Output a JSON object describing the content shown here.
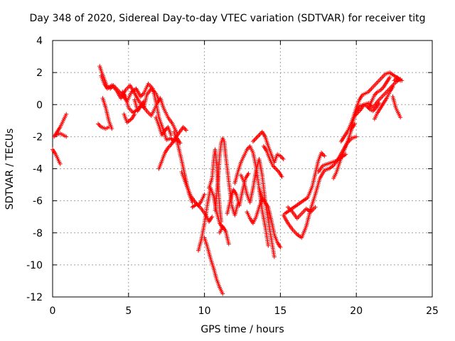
{
  "chart_data": {
    "type": "scatter",
    "title": "Day 348 of 2020, Sidereal Day-to-day VTEC variation (SDTVAR) for receiver titg",
    "xlabel": "GPS time / hours",
    "ylabel": "SDTVAR / TECUs",
    "xlim": [
      0,
      25
    ],
    "ylim": [
      -12,
      4
    ],
    "xticks": [
      0,
      5,
      10,
      15,
      20,
      25
    ],
    "yticks": [
      -12,
      -10,
      -8,
      -6,
      -4,
      -2,
      0,
      2,
      4
    ],
    "grid": true,
    "marker": "plus",
    "color": "#ff0000",
    "series": [
      {
        "x": [
          0.0,
          0.2,
          0.4,
          0.5
        ],
        "y": [
          -2.8,
          -3.1,
          -3.5,
          -3.7
        ]
      },
      {
        "x": [
          0.1,
          0.3,
          0.5,
          0.7,
          0.9
        ],
        "y": [
          -2.0,
          -1.7,
          -1.4,
          -1.0,
          -0.6
        ]
      },
      {
        "x": [
          0.2,
          0.5,
          0.9
        ],
        "y": [
          -1.9,
          -1.8,
          -2.0
        ]
      },
      {
        "x": [
          3.0,
          3.2,
          3.5,
          3.7
        ],
        "y": [
          -1.2,
          -1.4,
          -1.5,
          -1.4
        ]
      },
      {
        "x": [
          3.1,
          3.2,
          3.4,
          3.6,
          3.8,
          4.0,
          4.3,
          4.6,
          4.9,
          5.2,
          5.5,
          5.8,
          6.0,
          6.3,
          6.6,
          6.8,
          7.0,
          7.3,
          7.5,
          7.8,
          8.0,
          8.2,
          8.4
        ],
        "y": [
          2.4,
          2.1,
          1.6,
          1.1,
          1.0,
          1.2,
          0.9,
          0.6,
          0.2,
          0.8,
          1.0,
          0.5,
          0.7,
          1.3,
          1.0,
          0.2,
          -0.8,
          -1.6,
          -2.2,
          -2.1,
          -2.3,
          -2.1,
          -2.4
        ]
      },
      {
        "x": [
          3.2,
          3.4,
          3.6,
          3.9,
          4.2,
          4.5,
          4.8,
          5.1,
          5.4,
          5.7,
          6.0,
          6.2,
          6.5,
          6.8,
          7.0
        ],
        "y": [
          1.8,
          1.3,
          1.0,
          1.2,
          0.9,
          0.4,
          0.9,
          1.2,
          0.7,
          0.2,
          -0.2,
          0.6,
          1.0,
          0.7,
          0.3
        ]
      },
      {
        "x": [
          3.3,
          3.5,
          3.7,
          3.9
        ],
        "y": [
          0.4,
          -0.2,
          -1.0,
          -1.5
        ]
      },
      {
        "x": [
          4.6,
          4.8,
          5.0,
          5.3,
          5.6,
          5.9,
          6.2,
          6.5,
          6.7,
          6.9,
          7.1,
          7.3,
          7.6,
          7.9,
          8.2
        ],
        "y": [
          0.8,
          0.5,
          -0.2,
          -0.5,
          -0.3,
          0.0,
          -0.4,
          -0.7,
          -0.3,
          0.1,
          0.4,
          -0.2,
          -0.8,
          -1.2,
          -1.8
        ]
      },
      {
        "x": [
          4.7,
          4.9,
          5.2,
          5.4
        ],
        "y": [
          -0.6,
          -1.1,
          -0.9,
          -0.6
        ]
      },
      {
        "x": [
          5.4,
          5.6,
          5.8,
          6.0
        ],
        "y": [
          0.3,
          -0.4,
          -0.1,
          0.2
        ]
      },
      {
        "x": [
          6.8,
          7.0,
          7.2,
          7.4,
          7.6,
          7.8
        ],
        "y": [
          -0.8,
          -1.3,
          -1.9,
          -1.6,
          -1.4,
          -1.9
        ]
      },
      {
        "x": [
          7.0,
          7.2,
          7.4,
          7.6,
          7.8,
          8.0,
          8.3,
          8.6,
          8.8
        ],
        "y": [
          -4.0,
          -3.5,
          -3.0,
          -2.7,
          -2.5,
          -2.2,
          -1.8,
          -1.4,
          -1.6
        ]
      },
      {
        "x": [
          8.0,
          8.2,
          8.5,
          8.8,
          9.0,
          9.2
        ],
        "y": [
          -1.7,
          -2.3,
          -3.5,
          -4.8,
          -5.6,
          -6.1
        ]
      },
      {
        "x": [
          8.5,
          8.8,
          9.1,
          9.4,
          9.6,
          9.8,
          10.0
        ],
        "y": [
          -4.2,
          -5.0,
          -5.7,
          -6.1,
          -6.3,
          -6.0,
          -5.6
        ]
      },
      {
        "x": [
          9.2,
          9.5,
          9.8,
          10.1,
          10.3,
          10.5
        ],
        "y": [
          -6.4,
          -6.2,
          -6.5,
          -6.9,
          -7.3,
          -7.0
        ]
      },
      {
        "x": [
          9.6,
          9.8,
          10.0,
          10.2,
          10.4,
          10.6,
          10.8,
          11.0,
          11.2
        ],
        "y": [
          -9.1,
          -8.4,
          -7.4,
          -6.2,
          -5.2,
          -5.7,
          -6.7,
          -7.4,
          -7.7
        ]
      },
      {
        "x": [
          10.0,
          10.2,
          10.4,
          10.6,
          10.8,
          11.0,
          11.1,
          11.2
        ],
        "y": [
          -8.3,
          -8.9,
          -9.6,
          -10.2,
          -10.9,
          -11.4,
          -11.6,
          -11.8
        ]
      },
      {
        "x": [
          10.3,
          10.5,
          10.6,
          10.7,
          10.8,
          10.9,
          11.0,
          11.1
        ],
        "y": [
          -5.2,
          -4.6,
          -3.5,
          -2.8,
          -3.7,
          -5.1,
          -6.4,
          -7.3
        ]
      },
      {
        "x": [
          10.7,
          10.9,
          11.0,
          11.1,
          11.2,
          11.3,
          11.4,
          11.6,
          11.8,
          12.0,
          12.2
        ],
        "y": [
          -6.6,
          -4.7,
          -3.2,
          -2.4,
          -2.1,
          -2.3,
          -3.2,
          -4.8,
          -6.3,
          -6.9,
          -6.2
        ]
      },
      {
        "x": [
          11.0,
          11.2,
          11.4,
          11.5,
          11.6
        ],
        "y": [
          -8.0,
          -7.6,
          -7.9,
          -8.3,
          -8.7
        ]
      },
      {
        "x": [
          11.5,
          11.7,
          11.9,
          12.1,
          12.3,
          12.5,
          12.7,
          12.9
        ],
        "y": [
          -6.8,
          -6.0,
          -5.3,
          -5.6,
          -6.3,
          -5.4,
          -4.6,
          -4.3
        ]
      },
      {
        "x": [
          12.0,
          12.2,
          12.4,
          12.6,
          12.8,
          13.0,
          13.2,
          13.4,
          13.6,
          13.8,
          14.0,
          14.2
        ],
        "y": [
          -4.9,
          -4.2,
          -3.6,
          -3.2,
          -2.8,
          -2.6,
          -3.0,
          -3.9,
          -5.2,
          -6.6,
          -7.6,
          -8.8
        ]
      },
      {
        "x": [
          12.4,
          12.6,
          12.8,
          13.0,
          13.2,
          13.4,
          13.6,
          13.8,
          14.0,
          14.3,
          14.6
        ],
        "y": [
          -4.4,
          -4.8,
          -5.6,
          -6.1,
          -5.2,
          -4.1,
          -3.4,
          -4.4,
          -6.0,
          -7.8,
          -9.5
        ]
      },
      {
        "x": [
          12.8,
          13.0,
          13.2,
          13.4,
          13.6,
          13.8
        ],
        "y": [
          -6.7,
          -7.1,
          -7.4,
          -7.0,
          -6.4,
          -5.9
        ]
      },
      {
        "x": [
          13.2,
          13.4,
          13.6,
          13.8,
          14.0,
          14.2,
          14.4,
          14.6,
          14.8,
          15.0,
          15.2
        ],
        "y": [
          -2.3,
          -2.1,
          -1.9,
          -1.7,
          -2.0,
          -2.6,
          -3.1,
          -3.6,
          -3.1,
          -3.2,
          -3.4
        ]
      },
      {
        "x": [
          13.9,
          14.1,
          14.3,
          14.5,
          14.7,
          14.9,
          15.1
        ],
        "y": [
          -2.6,
          -2.9,
          -3.4,
          -3.8,
          -4.0,
          -4.2,
          -4.5
        ]
      },
      {
        "x": [
          13.6,
          13.8,
          14.0,
          14.2,
          14.4,
          14.6,
          14.8,
          15.0
        ],
        "y": [
          -5.2,
          -5.8,
          -6.1,
          -6.4,
          -7.2,
          -8.1,
          -8.6,
          -8.9
        ]
      },
      {
        "x": [
          15.2,
          15.5,
          15.8,
          16.1,
          16.4,
          16.7,
          17.0,
          17.3,
          17.6,
          17.9,
          18.2,
          18.5,
          18.8,
          19.1,
          19.4,
          19.7,
          20.0
        ],
        "y": [
          -6.9,
          -7.4,
          -7.8,
          -8.1,
          -8.3,
          -7.6,
          -6.5,
          -5.6,
          -4.6,
          -4.1,
          -4.0,
          -3.8,
          -3.4,
          -2.9,
          -2.4,
          -2.1,
          -2.0
        ]
      },
      {
        "x": [
          15.3,
          15.6,
          15.9,
          16.2,
          16.5,
          16.8,
          17.1,
          17.3,
          17.5,
          17.7,
          17.9
        ],
        "y": [
          -6.8,
          -6.6,
          -6.4,
          -6.2,
          -6.0,
          -5.8,
          -5.1,
          -4.3,
          -3.5,
          -3.0,
          -3.2
        ]
      },
      {
        "x": [
          15.5,
          15.8,
          16.1,
          16.4,
          16.7,
          17.0,
          17.3
        ],
        "y": [
          -6.4,
          -6.7,
          -7.1,
          -6.8,
          -6.5,
          -6.7,
          -6.4
        ]
      },
      {
        "x": [
          17.5,
          17.8,
          18.1,
          18.4,
          18.7,
          19.0,
          19.3
        ],
        "y": [
          -4.2,
          -3.8,
          -3.7,
          -3.6,
          -3.5,
          -3.3,
          -3.1
        ]
      },
      {
        "x": [
          18.5,
          18.7,
          18.9,
          19.1,
          19.3,
          19.5,
          19.7,
          19.9
        ],
        "y": [
          -4.6,
          -4.2,
          -3.6,
          -3.1,
          -2.6,
          -2.1,
          -1.5,
          -1.2
        ]
      },
      {
        "x": [
          19.0,
          19.2,
          19.4,
          19.6,
          19.8,
          20.0,
          20.2,
          20.4,
          20.6,
          20.8,
          21.0,
          21.3,
          21.6,
          21.9,
          22.2,
          22.5,
          22.8,
          23.0
        ],
        "y": [
          -2.3,
          -2.0,
          -1.7,
          -1.3,
          -0.8,
          -0.2,
          0.3,
          0.6,
          0.7,
          0.8,
          1.0,
          1.3,
          1.6,
          1.9,
          2.0,
          1.8,
          1.6,
          1.5
        ]
      },
      {
        "x": [
          19.6,
          19.8,
          20.0,
          20.2,
          20.5,
          20.8,
          21.1,
          21.4,
          21.7,
          22.0,
          22.3,
          22.6,
          22.9
        ],
        "y": [
          -1.6,
          -1.0,
          -0.4,
          -0.1,
          0.0,
          0.1,
          -0.2,
          0.2,
          0.5,
          0.8,
          1.1,
          1.4,
          1.6
        ]
      },
      {
        "x": [
          19.9,
          20.1,
          20.3,
          20.5,
          20.7,
          20.9,
          21.1,
          21.3,
          21.5
        ],
        "y": [
          -0.7,
          -0.5,
          -0.3,
          0.0,
          -0.1,
          -0.3,
          -0.4,
          -0.2,
          0.1
        ]
      },
      {
        "x": [
          20.8,
          21.0,
          21.2,
          21.4,
          21.6,
          21.8,
          22.0,
          22.2
        ],
        "y": [
          -0.2,
          0.2,
          0.6,
          0.8,
          0.9,
          1.1,
          1.4,
          1.7
        ]
      },
      {
        "x": [
          21.2,
          21.4,
          21.6,
          21.8,
          22.0,
          22.2,
          22.4
        ],
        "y": [
          -0.9,
          -0.5,
          -0.2,
          0.1,
          0.4,
          0.8,
          1.1
        ]
      },
      {
        "x": [
          22.4,
          22.6,
          22.8,
          22.9
        ],
        "y": [
          0.5,
          -0.2,
          -0.6,
          -0.8
        ]
      },
      {
        "x": [
          22.5,
          22.7,
          22.9
        ],
        "y": [
          1.5,
          1.7,
          1.5
        ]
      }
    ]
  }
}
